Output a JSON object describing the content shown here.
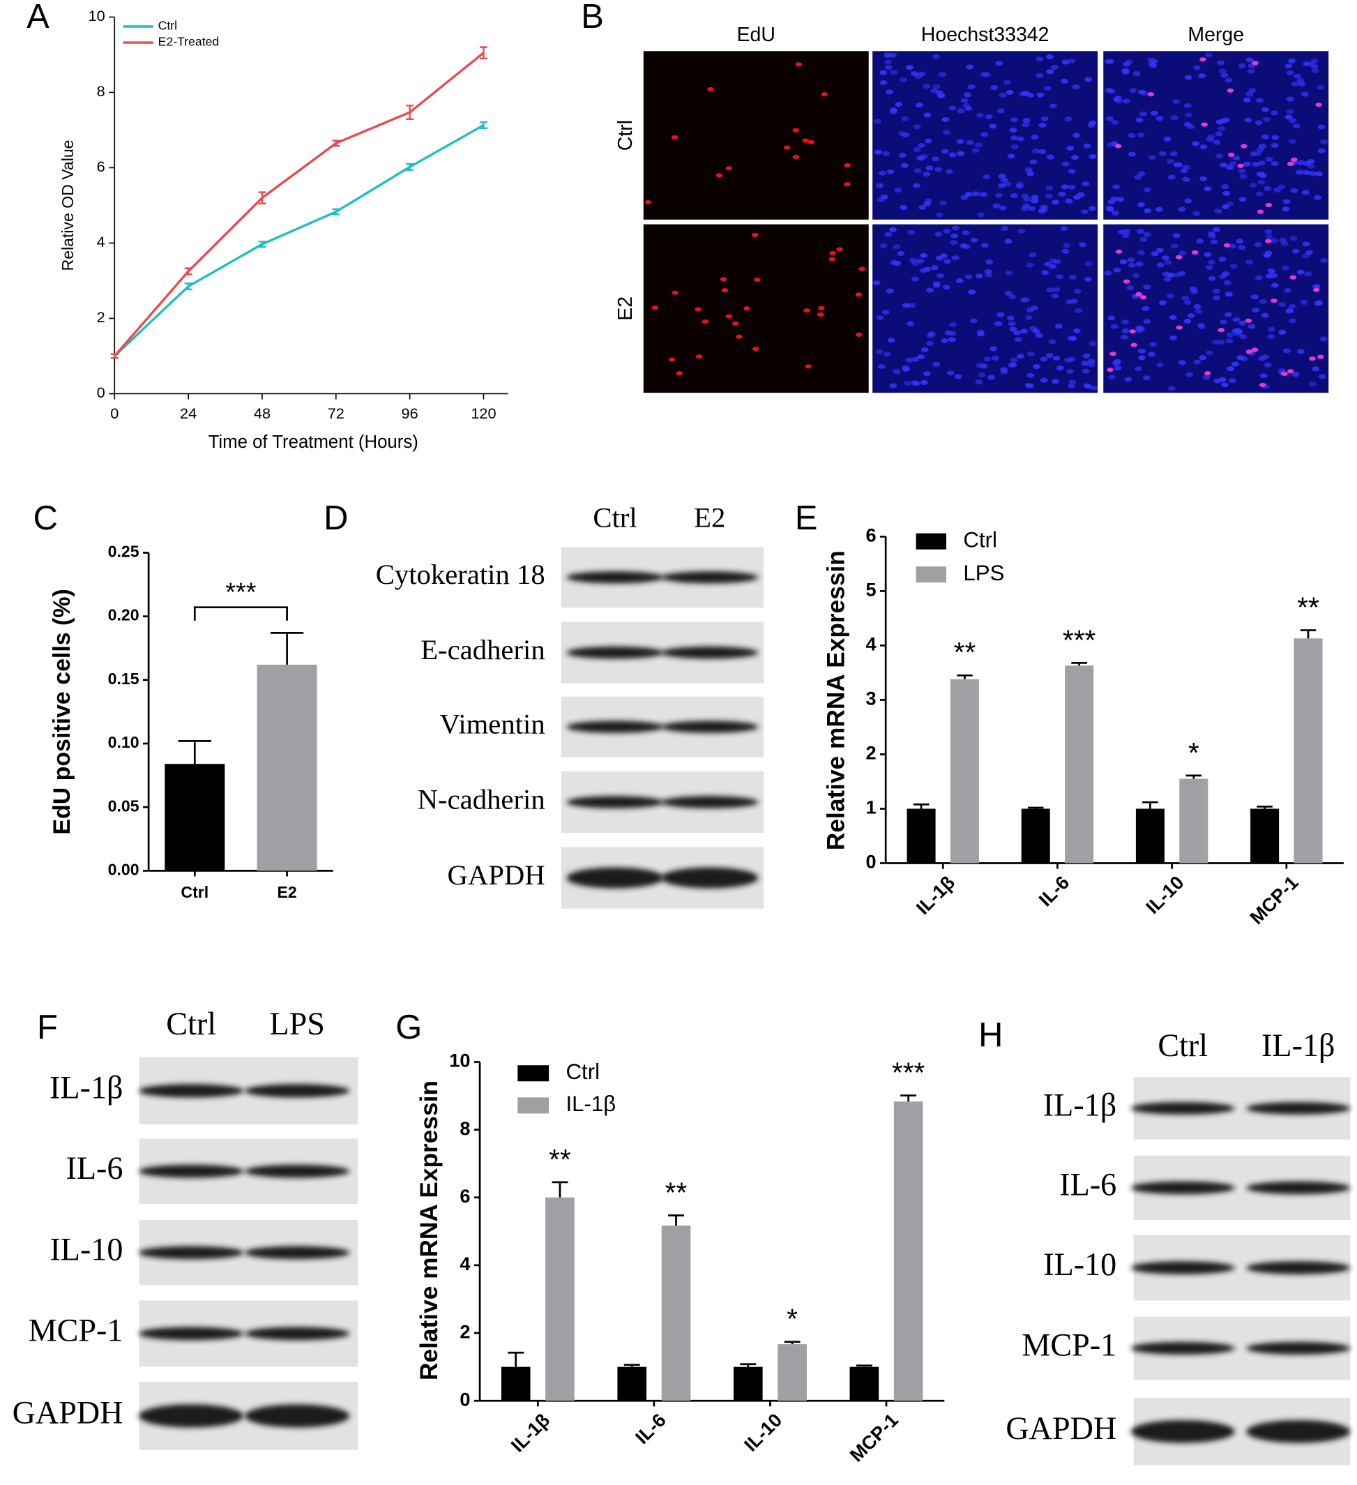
{
  "chart_data": [
    {
      "type": "line",
      "label": "A",
      "xlabel": "Time of Treatment (Hours)",
      "ylabel": "Relative OD Value",
      "x": [
        0,
        24,
        48,
        72,
        96,
        120
      ],
      "series": [
        {
          "name": "Ctrl",
          "color": "#1fbfc0",
          "values": [
            1.0,
            2.85,
            3.97,
            4.83,
            6.02,
            7.13
          ],
          "errors": [
            0.05,
            0.08,
            0.07,
            0.07,
            0.08,
            0.08
          ]
        },
        {
          "name": "E2-Treated",
          "color": "#ec4a4e",
          "values": [
            1.0,
            3.25,
            5.2,
            6.65,
            7.47,
            9.05
          ],
          "errors": [
            0.05,
            0.08,
            0.15,
            0.07,
            0.18,
            0.15
          ]
        }
      ],
      "xlim": [
        0,
        128
      ],
      "xticks": [
        0,
        24,
        48,
        72,
        96,
        120
      ],
      "ylim": [
        0,
        10
      ],
      "yticks": [
        0,
        2,
        4,
        6,
        8,
        10
      ],
      "legend": "upper left"
    },
    {
      "type": "bar",
      "label": "C",
      "ylabel": "EdU positive cells (%)",
      "categories": [
        "Ctrl",
        "E2"
      ],
      "values": [
        0.084,
        0.162
      ],
      "errors": [
        0.018,
        0.025
      ],
      "colors": [
        "#000000",
        "#a0a0a4"
      ],
      "annotation": "***",
      "ylim": [
        0,
        0.25
      ],
      "yticks": [
        {
          "value": 0,
          "label": "0.00"
        },
        0.05,
        {
          "value": 0.1,
          "label": "0.10"
        },
        0.15,
        {
          "value": 0.2,
          "label": "0.20"
        },
        0.25
      ]
    },
    {
      "type": "grouped_bar",
      "label": "E",
      "ylabel": "Relative mRNA Expressin",
      "categories": [
        "IL-1β",
        "IL-6",
        "IL-10",
        "MCP-1"
      ],
      "series": [
        {
          "name": "Ctrl",
          "color": "#000000",
          "values": [
            1.0,
            1.0,
            1.0,
            1.0
          ],
          "errors": [
            0.08,
            0.02,
            0.12,
            0.04
          ]
        },
        {
          "name": "LPS",
          "color": "#a0a0a4",
          "values": [
            3.38,
            3.63,
            1.55,
            4.13
          ],
          "errors": [
            0.07,
            0.05,
            0.06,
            0.15
          ]
        }
      ],
      "annotations": [
        "**",
        "***",
        "*",
        "**"
      ],
      "ylim": [
        0,
        6
      ],
      "yticks": [
        0,
        1,
        2,
        3,
        4,
        5,
        6
      ],
      "legend": "upper left"
    },
    {
      "type": "grouped_bar",
      "label": "G",
      "ylabel": "Relative mRNA Expressin",
      "categories": [
        "IL-1β",
        "IL-6",
        "IL-10",
        "MCP-1"
      ],
      "series": [
        {
          "name": "Ctrl",
          "color": "#000000",
          "values": [
            1.0,
            1.0,
            1.0,
            1.0
          ],
          "errors": [
            0.42,
            0.06,
            0.08,
            0.04
          ]
        },
        {
          "name": "IL-1β",
          "color": "#a0a0a4",
          "values": [
            6.0,
            5.17,
            1.67,
            8.83
          ],
          "errors": [
            0.45,
            0.3,
            0.07,
            0.18
          ]
        }
      ],
      "annotations": [
        "**",
        "**",
        "*",
        "***"
      ],
      "ylim": [
        0,
        10
      ],
      "yticks": [
        0,
        2,
        4,
        6,
        8,
        10
      ],
      "legend": "upper left"
    }
  ],
  "microscopy": {
    "label": "B",
    "columns": [
      "EdU",
      "Hoechst33342",
      "Merge"
    ],
    "rows": [
      "Ctrl",
      "E2"
    ]
  },
  "blots": [
    {
      "label": "D",
      "lanes": [
        "Ctrl",
        "E2"
      ],
      "proteins": [
        "Cytokeratin 18",
        "E-cadherin",
        "Vimentin",
        "N-cadherin",
        "GAPDH"
      ]
    },
    {
      "label": "F",
      "lanes": [
        "Ctrl",
        "LPS"
      ],
      "proteins": [
        "IL-1β",
        "IL-6",
        "IL-10",
        "MCP-1",
        "GAPDH"
      ]
    },
    {
      "label": "H",
      "lanes": [
        "Ctrl",
        "IL-1β"
      ],
      "proteins": [
        "IL-1β",
        "IL-6",
        "IL-10",
        "MCP-1",
        "GAPDH"
      ]
    }
  ]
}
